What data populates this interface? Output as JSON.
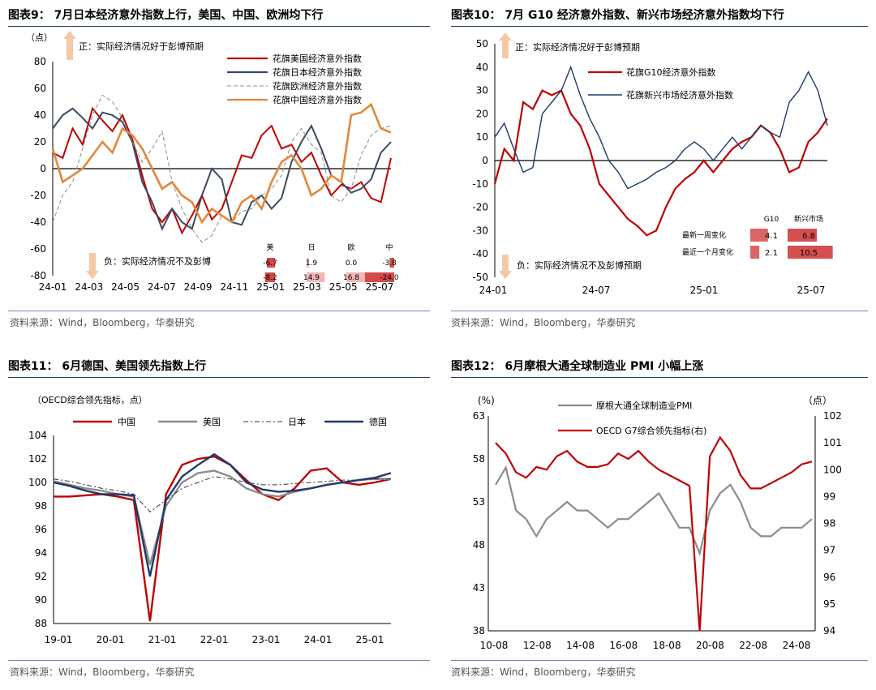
{
  "panels": [
    {
      "title": "图表9：  7月日本经济意外指数上行，美国、中国、欧洲均下行",
      "source": "资料来源：Wind，Bloomberg，华泰研究"
    },
    {
      "title": "图表10：  7月 G10 经济意外指数、新兴市场经济意外指数均下行",
      "source": "资料来源：Wind，Bloomberg，华泰研究"
    },
    {
      "title": "图表11：  6月德国、美国领先指数上行",
      "source": "资料来源：Wind，Bloomberg，华泰研究"
    },
    {
      "title": "图表12：  6月摩根大通全球制造业 PMI 小幅上涨",
      "source": "资料来源：Wind，Bloomberg，华泰研究"
    }
  ],
  "chart_data": [
    {
      "type": "line",
      "unit_label": "（点）",
      "ylim": [
        -80,
        80
      ],
      "yticks": [
        "80",
        "60",
        "40",
        "20",
        "0",
        "-20",
        "-40",
        "-60",
        "-80"
      ],
      "xticks": [
        "24-01",
        "24-03",
        "24-05",
        "24-07",
        "24-09",
        "24-11",
        "25-01",
        "25-03",
        "25-05",
        "25-07"
      ],
      "annotation_up": "正：实际经济情况好于彭博预期",
      "annotation_down": "负：实际经济情况不及彭博",
      "series": [
        {
          "name": "花旗美国经济意外指数",
          "color": "#c00000",
          "values": [
            12,
            8,
            30,
            18,
            45,
            36,
            28,
            40,
            22,
            -5,
            -30,
            -40,
            -30,
            -48,
            -35,
            -20,
            -38,
            -30,
            -10,
            10,
            8,
            25,
            32,
            15,
            18,
            5,
            12,
            -5,
            -20,
            -12,
            -15,
            -10,
            -22,
            -25,
            8
          ]
        },
        {
          "name": "花旗日本经济意外指数",
          "color": "#3a4a5e",
          "values": [
            30,
            40,
            45,
            38,
            30,
            42,
            40,
            35,
            20,
            -10,
            -25,
            -45,
            -30,
            -40,
            -45,
            -20,
            0,
            -8,
            -40,
            -42,
            -25,
            -20,
            -30,
            -22,
            5,
            20,
            32,
            15,
            -5,
            -10,
            -18,
            -15,
            -8,
            12,
            20
          ]
        },
        {
          "name": "花旗欧洲经济意外指数",
          "color": "#8c8c8c",
          "dashed": true,
          "values": [
            -40,
            -20,
            -10,
            15,
            40,
            55,
            50,
            38,
            20,
            5,
            15,
            28,
            -10,
            -30,
            -45,
            -55,
            -50,
            -35,
            -40,
            -32,
            -30,
            -20,
            -15,
            -5,
            20,
            30,
            18,
            12,
            -20,
            -25,
            -15,
            10,
            25,
            30,
            32
          ]
        },
        {
          "name": "花旗中国经济意外指数",
          "color": "#e3873c",
          "values": [
            15,
            -10,
            -5,
            0,
            10,
            20,
            12,
            30,
            25,
            15,
            0,
            -15,
            -10,
            -20,
            -25,
            -40,
            -30,
            -35,
            -40,
            -25,
            -20,
            -30,
            -10,
            5,
            10,
            0,
            -20,
            -15,
            -5,
            -10,
            40,
            42,
            48,
            30,
            27
          ]
        }
      ],
      "table": {
        "headers": [
          "美",
          "日",
          "欧",
          "中"
        ],
        "rows": [
          {
            "values": [
              "-6.7",
              "1.9",
              "0.0",
              "-3.8"
            ]
          },
          {
            "values": [
              "-8.2",
              "14.9",
              "16.8",
              "-24.0"
            ]
          }
        ]
      }
    },
    {
      "type": "line",
      "ylim": [
        -50,
        50
      ],
      "yticks": [
        "50",
        "40",
        "30",
        "20",
        "10",
        "0",
        "-10",
        "-20",
        "-30",
        "-40",
        "-50"
      ],
      "xticks": [
        "24-01",
        "24-07",
        "25-01",
        "25-07"
      ],
      "annotation_up": "正：实际经济情况好于彭博预期",
      "annotation_down": "负：实际经济情况不及彭博预期",
      "series": [
        {
          "name": "花旗G10经济意外指数",
          "color": "#c00000",
          "values": [
            -10,
            5,
            0,
            25,
            22,
            30,
            28,
            30,
            20,
            15,
            5,
            -10,
            -15,
            -20,
            -25,
            -28,
            -32,
            -30,
            -20,
            -12,
            -8,
            -5,
            0,
            -5,
            0,
            5,
            8,
            10,
            15,
            12,
            5,
            -5,
            -3,
            8,
            12,
            18
          ]
        },
        {
          "name": "花旗新兴市场经济意外指数",
          "color": "#1f3a6a",
          "values": [
            10,
            16,
            5,
            -5,
            -3,
            20,
            25,
            30,
            40,
            28,
            18,
            10,
            0,
            -5,
            -12,
            -10,
            -8,
            -5,
            -3,
            0,
            5,
            8,
            5,
            0,
            5,
            10,
            5,
            10,
            15,
            12,
            10,
            25,
            30,
            38,
            30,
            15
          ]
        }
      ],
      "table": {
        "headers": [
          "G10",
          "新兴市场"
        ],
        "rows": [
          {
            "label": "最新一周变化",
            "values": [
              "4.1",
              "6.8"
            ]
          },
          {
            "label": "最近一个月变化",
            "values": [
              "2.1",
              "10.5"
            ]
          }
        ]
      }
    },
    {
      "type": "line",
      "unit_label": "（OECD综合领先指标，点）",
      "ylim": [
        88,
        104
      ],
      "yticks": [
        "104",
        "102",
        "100",
        "98",
        "96",
        "94",
        "92",
        "90",
        "88"
      ],
      "xticks": [
        "19-01",
        "20-01",
        "21-01",
        "22-01",
        "23-01",
        "24-01",
        "25-01"
      ],
      "series": [
        {
          "name": "中国",
          "color": "#c00000",
          "values": [
            98.8,
            98.8,
            98.9,
            99.0,
            98.8,
            98.5,
            88.2,
            99.0,
            101.5,
            102.0,
            102.2,
            101.5,
            100.2,
            99.0,
            98.5,
            99.5,
            101.0,
            101.2,
            100.0,
            99.8,
            100.0,
            100.3
          ]
        },
        {
          "name": "美国",
          "color": "#8c8c8c",
          "values": [
            100.1,
            99.8,
            99.5,
            99.3,
            99.0,
            98.8,
            93.0,
            98.0,
            100.0,
            100.8,
            101.0,
            100.5,
            99.5,
            99.0,
            98.8,
            99.2,
            99.5,
            99.8,
            100.0,
            100.2,
            100.3,
            100.3
          ]
        },
        {
          "name": "日本",
          "color": "#333333",
          "dashed": true,
          "values": [
            100.3,
            100.1,
            99.8,
            99.5,
            99.3,
            99.0,
            97.5,
            98.5,
            99.5,
            100.0,
            100.5,
            100.3,
            100.0,
            99.8,
            99.8,
            99.9,
            100.0,
            100.1,
            100.2,
            100.2,
            100.3,
            100.3
          ]
        },
        {
          "name": "德国",
          "color": "#1f3a6a",
          "values": [
            100.0,
            99.7,
            99.3,
            99.0,
            99.0,
            98.9,
            92.0,
            98.5,
            100.5,
            101.5,
            102.4,
            101.5,
            100.0,
            99.4,
            99.2,
            99.3,
            99.5,
            99.8,
            100.0,
            100.2,
            100.4,
            100.8
          ]
        }
      ]
    },
    {
      "type": "line",
      "unit_left": "(%)",
      "unit_right": "（点）",
      "ylim_left": [
        38,
        63
      ],
      "ylim_right": [
        94,
        102
      ],
      "yticks_left": [
        "63",
        "58",
        "53",
        "48",
        "43",
        "38"
      ],
      "yticks_right": [
        "102",
        "101",
        "100",
        "99",
        "98",
        "97",
        "96",
        "95",
        "94"
      ],
      "xticks": [
        "10-08",
        "12-08",
        "14-08",
        "16-08",
        "18-08",
        "20-08",
        "22-08",
        "24-08"
      ],
      "series": [
        {
          "name": "摩根大通全球制造业PMI",
          "color": "#8c8c8c",
          "axis": "left",
          "values": [
            55,
            57,
            52,
            51,
            49,
            51,
            52,
            53,
            52,
            52,
            51,
            50,
            51,
            51,
            52,
            53,
            54,
            52,
            50,
            50,
            47,
            52,
            54,
            55,
            53,
            50,
            49,
            49,
            50,
            50,
            50,
            51
          ]
        },
        {
          "name": "OECD G7综合领先指标(右)",
          "color": "#c00000",
          "axis": "right",
          "values": [
            101.0,
            100.6,
            99.9,
            99.7,
            100.1,
            100.0,
            100.5,
            100.7,
            100.3,
            100.1,
            100.1,
            100.2,
            100.6,
            100.4,
            100.7,
            100.3,
            100.0,
            99.8,
            99.6,
            99.4,
            94.0,
            100.5,
            101.2,
            100.7,
            99.8,
            99.3,
            99.3,
            99.5,
            99.7,
            99.9,
            100.2,
            100.3
          ]
        }
      ]
    }
  ]
}
